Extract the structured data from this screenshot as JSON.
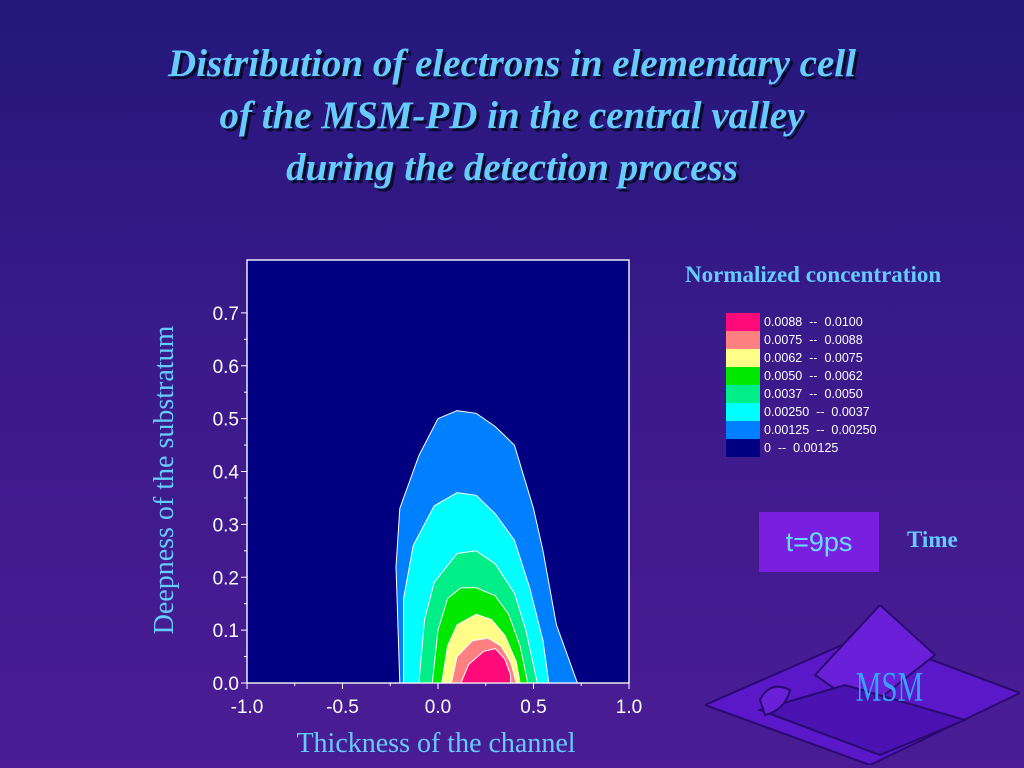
{
  "title": {
    "line1": "Distribution of electrons in elementary cell",
    "line2": "of the MSM-PD in the central valley",
    "line3": "during the detection process"
  },
  "legend": {
    "title": "Normalized concentration",
    "items": [
      {
        "label": "0.0088  --  0.0100",
        "color": "#ff0a78"
      },
      {
        "label": "0.0075  --  0.0088",
        "color": "#ff8080"
      },
      {
        "label": "0.0062  --  0.0075",
        "color": "#ffff88"
      },
      {
        "label": "0.0050  --  0.0062",
        "color": "#00e800"
      },
      {
        "label": "0.0037  --  0.0050",
        "color": "#00ee88"
      },
      {
        "label": "0.00250  --  0.0037",
        "color": "#00ffff"
      },
      {
        "label": "0.00125  --  0.00250",
        "color": "#0080ff"
      },
      {
        "label": "0  --  0.00125",
        "color": "#000080"
      }
    ]
  },
  "time_box": {
    "value": "t=9ps",
    "label": "Time"
  },
  "logo_text": "MSM",
  "chart_data": {
    "type": "contour",
    "xlabel": "Thickness of the channel",
    "ylabel": "Deepness of the substratum",
    "xlim": [
      -1.0,
      1.0
    ],
    "ylim": [
      0.0,
      0.8
    ],
    "xticks": [
      "-1.0",
      "-0.5",
      "0.0",
      "0.5",
      "1.0"
    ],
    "yticks": [
      "0.0",
      "0.1",
      "0.2",
      "0.3",
      "0.4",
      "0.5",
      "0.6",
      "0.7"
    ],
    "background_color": "#000080",
    "levels": [
      {
        "range": "0.00125 -- 0.00250",
        "color": "#0080ff",
        "points": [
          [
            -0.2,
            0.0
          ],
          [
            -0.22,
            0.22
          ],
          [
            -0.2,
            0.33
          ],
          [
            -0.1,
            0.43
          ],
          [
            0.0,
            0.5
          ],
          [
            0.1,
            0.515
          ],
          [
            0.2,
            0.51
          ],
          [
            0.3,
            0.485
          ],
          [
            0.4,
            0.45
          ],
          [
            0.5,
            0.33
          ],
          [
            0.55,
            0.25
          ],
          [
            0.62,
            0.11
          ],
          [
            0.73,
            0.0
          ]
        ]
      },
      {
        "range": "0.00250 -- 0.0037",
        "color": "#00ffff",
        "points": [
          [
            -0.18,
            0.0
          ],
          [
            -0.18,
            0.16
          ],
          [
            -0.13,
            0.26
          ],
          [
            -0.02,
            0.335
          ],
          [
            0.1,
            0.36
          ],
          [
            0.2,
            0.355
          ],
          [
            0.3,
            0.32
          ],
          [
            0.4,
            0.27
          ],
          [
            0.48,
            0.18
          ],
          [
            0.55,
            0.08
          ],
          [
            0.58,
            0.0
          ]
        ]
      },
      {
        "range": "0.0037 -- 0.0050",
        "color": "#00ee88",
        "points": [
          [
            -0.1,
            0.0
          ],
          [
            -0.07,
            0.12
          ],
          [
            -0.02,
            0.19
          ],
          [
            0.1,
            0.245
          ],
          [
            0.2,
            0.25
          ],
          [
            0.3,
            0.225
          ],
          [
            0.4,
            0.17
          ],
          [
            0.46,
            0.1
          ],
          [
            0.52,
            0.0
          ]
        ]
      },
      {
        "range": "0.0050 -- 0.0062",
        "color": "#00e800",
        "points": [
          [
            -0.03,
            0.0
          ],
          [
            0.0,
            0.1
          ],
          [
            0.05,
            0.16
          ],
          [
            0.12,
            0.18
          ],
          [
            0.2,
            0.18
          ],
          [
            0.3,
            0.165
          ],
          [
            0.37,
            0.13
          ],
          [
            0.43,
            0.07
          ],
          [
            0.47,
            0.0
          ]
        ]
      },
      {
        "range": "0.0062 -- 0.0075",
        "color": "#ffff88",
        "points": [
          [
            0.02,
            0.0
          ],
          [
            0.05,
            0.07
          ],
          [
            0.1,
            0.11
          ],
          [
            0.2,
            0.13
          ],
          [
            0.28,
            0.12
          ],
          [
            0.35,
            0.09
          ],
          [
            0.41,
            0.04
          ],
          [
            0.43,
            0.0
          ]
        ]
      },
      {
        "range": "0.0075 -- 0.0088",
        "color": "#ff8080",
        "points": [
          [
            0.07,
            0.0
          ],
          [
            0.1,
            0.05
          ],
          [
            0.18,
            0.08
          ],
          [
            0.26,
            0.085
          ],
          [
            0.33,
            0.07
          ],
          [
            0.38,
            0.04
          ],
          [
            0.41,
            0.0
          ]
        ]
      },
      {
        "range": "0.0088 -- 0.0100",
        "color": "#ff0a78",
        "points": [
          [
            0.12,
            0.0
          ],
          [
            0.16,
            0.035
          ],
          [
            0.24,
            0.06
          ],
          [
            0.3,
            0.065
          ],
          [
            0.35,
            0.045
          ],
          [
            0.38,
            0.015
          ],
          [
            0.38,
            0.0
          ]
        ]
      }
    ]
  }
}
